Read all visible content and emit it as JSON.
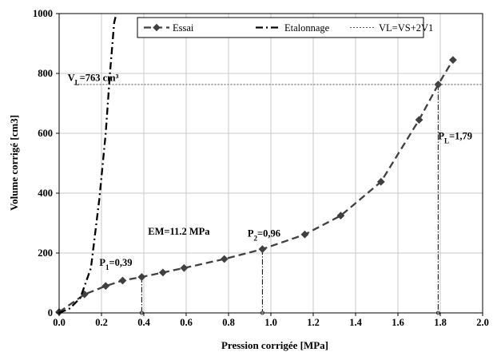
{
  "chart_data": {
    "type": "line",
    "xlabel": "Pression corrigée [MPa]",
    "ylabel": "Volume corrigé [cm3]",
    "xlim": [
      0,
      2.0
    ],
    "ylim": [
      0,
      1000
    ],
    "xticks": [
      "0.0",
      "0.2",
      "0.4",
      "0.6",
      "0.8",
      "1.0",
      "1.2",
      "1.4",
      "1.6",
      "1.8",
      "2.0"
    ],
    "yticks": [
      "0",
      "200",
      "400",
      "600",
      "800",
      "1000"
    ],
    "grid": "vertical and horizontal, light gray",
    "legend_position": "top",
    "series": [
      {
        "name": "Essai",
        "style": "dashed with diamond markers",
        "color": "#404040",
        "x": [
          0.0,
          0.12,
          0.22,
          0.3,
          0.39,
          0.49,
          0.59,
          0.78,
          0.96,
          1.16,
          1.33,
          1.52,
          1.7,
          1.79,
          1.86
        ],
        "y": [
          3,
          62,
          90,
          108,
          120,
          135,
          150,
          180,
          213,
          262,
          325,
          438,
          645,
          763,
          845
        ]
      },
      {
        "name": "Etalonnage",
        "style": "dash-dot",
        "color": "#000000",
        "x": [
          0.0,
          0.05,
          0.1,
          0.15,
          0.19,
          0.22,
          0.24,
          0.26,
          0.27
        ],
        "y": [
          0,
          15,
          50,
          150,
          380,
          600,
          800,
          970,
          1000
        ]
      },
      {
        "name": "VL=VS+2V1",
        "style": "dotted horizontal",
        "color": "#555555",
        "x": [
          0.0,
          2.0
        ],
        "y": [
          763,
          763
        ]
      }
    ],
    "reference_lines": [
      {
        "x": 0.39,
        "y_top": 120
      },
      {
        "x": 0.96,
        "y_top": 213
      },
      {
        "x": 1.79,
        "y_top": 763
      }
    ],
    "annotations": [
      {
        "text_main": "V",
        "text_sub": "L",
        "text_rest": "=763 cm³",
        "x": 0.04,
        "y": 775,
        "color": "#808080"
      },
      {
        "text_main": "P",
        "text_sub": "L",
        "text_rest": "=1,79",
        "x": 1.79,
        "y": 580,
        "color": "#000000"
      },
      {
        "text_main": "P",
        "text_sub": "2",
        "text_rest": "=0,96",
        "x": 0.89,
        "y": 255,
        "color": "#000000"
      },
      {
        "text_main": "P",
        "text_sub": "1",
        "text_rest": "=0,39",
        "x": 0.19,
        "y": 158,
        "color": "#000000"
      },
      {
        "text_main": "EM=11.2 MPa",
        "text_sub": "",
        "text_rest": "",
        "x": 0.42,
        "y": 262,
        "color": "#000000"
      }
    ]
  }
}
